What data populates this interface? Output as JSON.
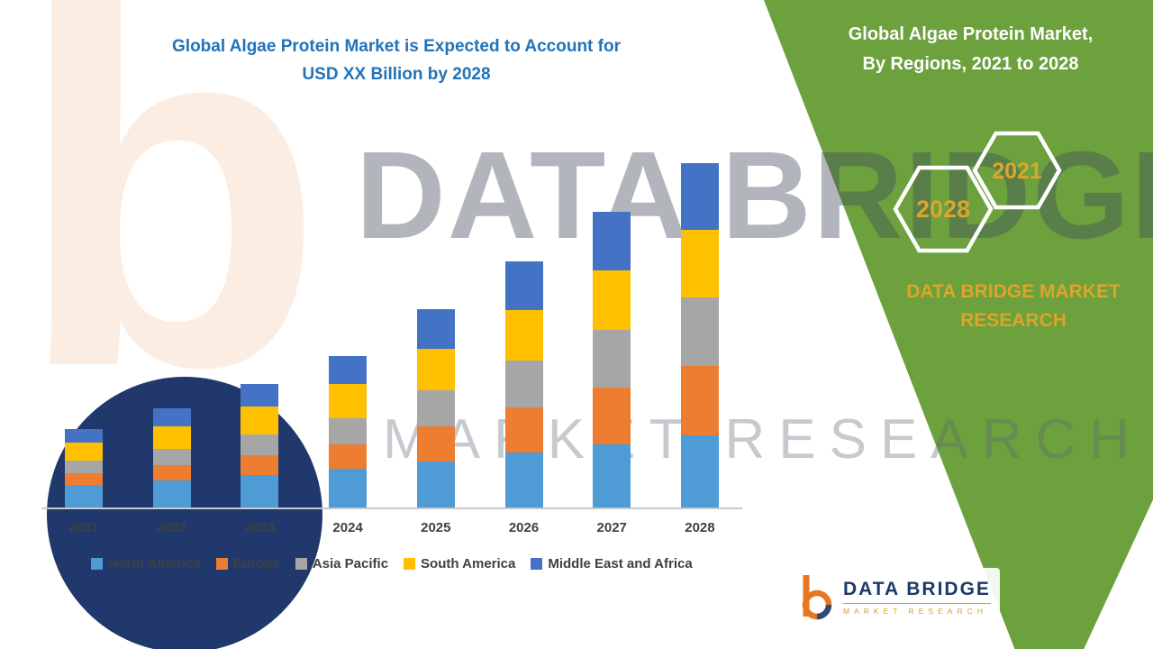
{
  "chart_title": {
    "line1": "Global Algae Protein Market is Expected to Account for",
    "line2": "USD XX Billion by 2028",
    "color": "#2173B9"
  },
  "side_panel": {
    "bg_color": "#6CA13E",
    "accent_color": "#DCA52B",
    "title_line1": "Global Algae Protein Market,",
    "title_line2": "By Regions, 2021 to 2028",
    "hexagons": [
      {
        "label": "2028"
      },
      {
        "label": "2021"
      }
    ],
    "brand_line1": "DATA BRIDGE MARKET",
    "brand_line2": "RESEARCH"
  },
  "watermark": {
    "b_glyph": "b",
    "line1": "DATA BRIDGE",
    "line2": "MARKET RESEARCH"
  },
  "logo": {
    "name": "DATA BRIDGE",
    "sub": "MARKET RESEARCH"
  },
  "chart_data": {
    "type": "bar",
    "stacked": true,
    "title": "Global Algae Protein Market is Expected to Account for USD XX Billion by 2028",
    "xlabel": "",
    "ylabel": "",
    "unit_note": "USD XX Billion (axis values not shown)",
    "gridlines": false,
    "legend_position": "bottom",
    "ylim": [
      0,
      40
    ],
    "categories": [
      "2021",
      "2022",
      "2023",
      "2024",
      "2025",
      "2026",
      "2027",
      "2028"
    ],
    "series": [
      {
        "name": "North America",
        "color": "#4F9BD5",
        "values": [
          2.5,
          3.0,
          3.6,
          4.3,
          5.1,
          6.1,
          7.0,
          8.0
        ]
      },
      {
        "name": "Europe",
        "color": "#ED7D31",
        "values": [
          1.3,
          1.7,
          2.2,
          2.7,
          3.9,
          5.0,
          6.3,
          7.7
        ]
      },
      {
        "name": "Asia Pacific",
        "color": "#A6A6A6",
        "values": [
          1.4,
          1.8,
          2.3,
          2.9,
          4.0,
          5.2,
          6.4,
          7.6
        ]
      },
      {
        "name": "South America",
        "color": "#FFC000",
        "values": [
          2.0,
          2.5,
          3.1,
          3.8,
          4.6,
          5.6,
          6.6,
          7.5
        ]
      },
      {
        "name": "Middle East and Africa",
        "color": "#4472C4",
        "values": [
          1.5,
          2.0,
          2.5,
          3.1,
          4.4,
          5.4,
          6.5,
          7.4
        ]
      }
    ]
  }
}
